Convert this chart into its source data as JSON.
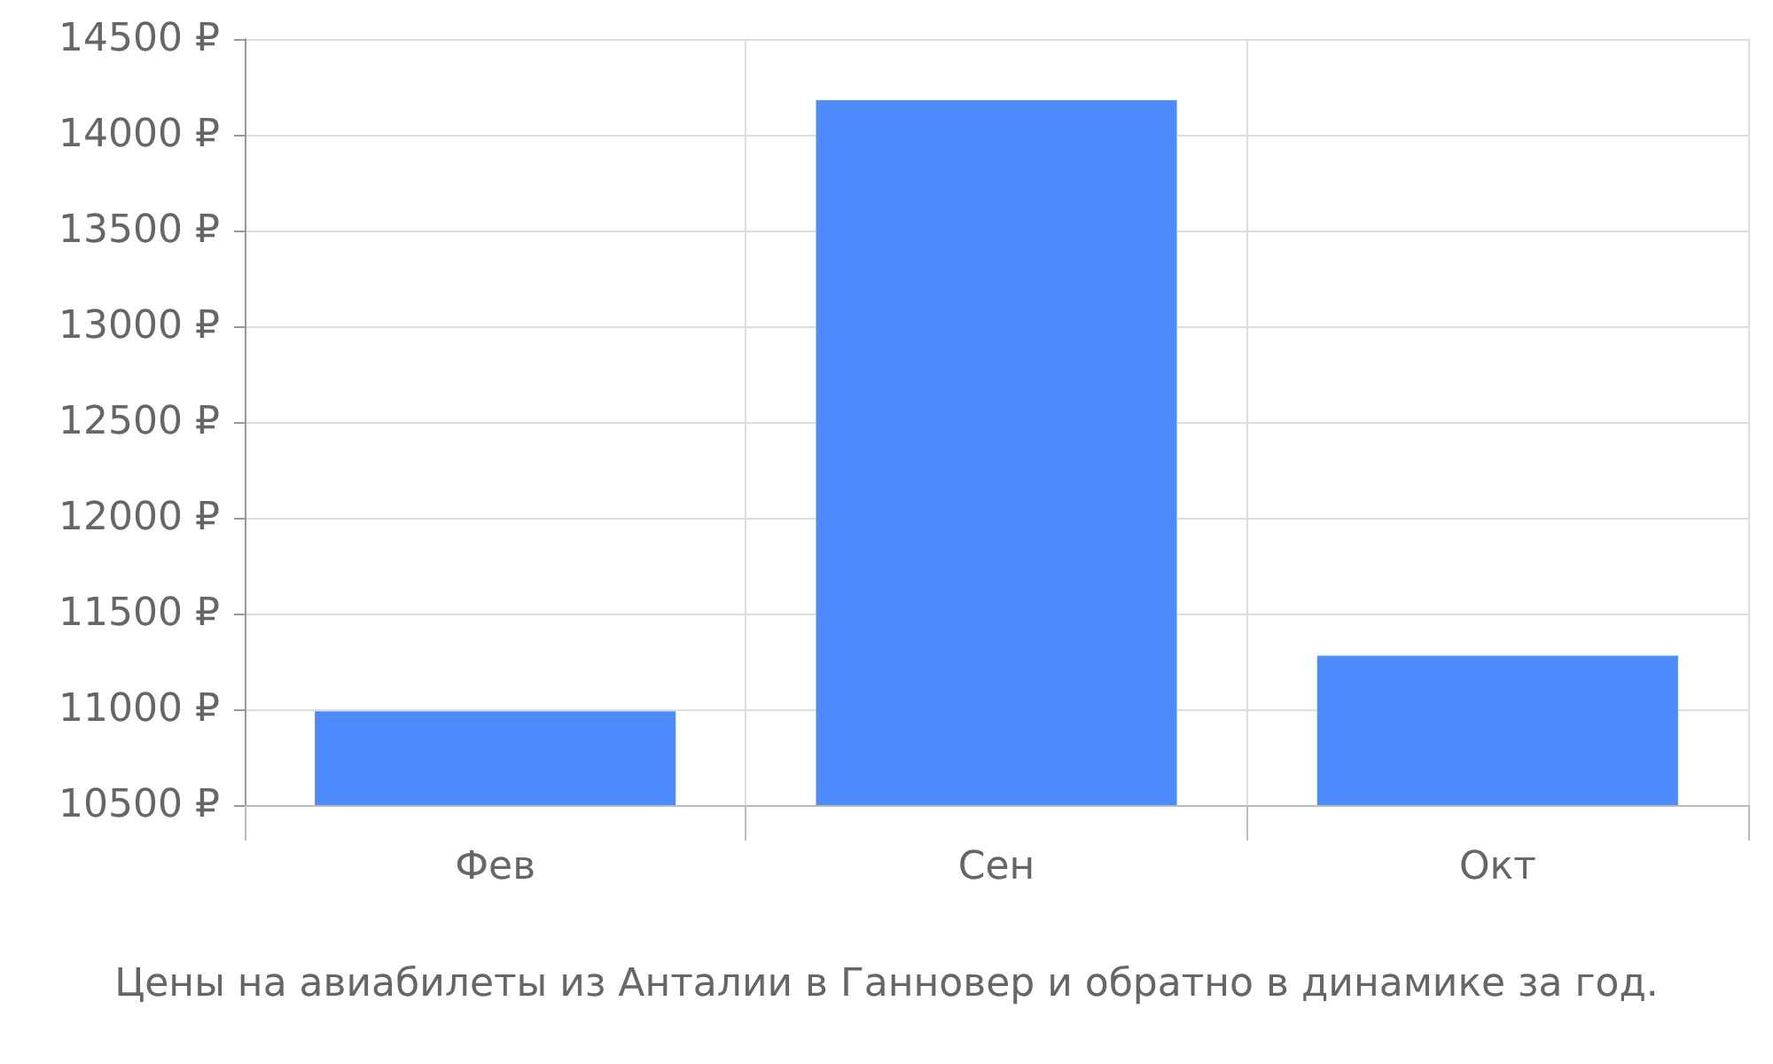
{
  "chart_data": {
    "type": "bar",
    "categories": [
      "Фев",
      "Сен",
      "Окт"
    ],
    "values": [
      10990,
      14180,
      11280
    ],
    "color": "#4d8afc",
    "ylim": [
      10500,
      14500
    ],
    "yticks": [
      {
        "value": 10500,
        "label": "10500 ₽"
      },
      {
        "value": 11000,
        "label": "11000 ₽"
      },
      {
        "value": 11500,
        "label": "11500 ₽"
      },
      {
        "value": 12000,
        "label": "12000 ₽"
      },
      {
        "value": 12500,
        "label": "12500 ₽"
      },
      {
        "value": 13000,
        "label": "13000 ₽"
      },
      {
        "value": 13500,
        "label": "13500 ₽"
      },
      {
        "value": 14000,
        "label": "14000 ₽"
      },
      {
        "value": 14500,
        "label": "14500 ₽"
      }
    ],
    "grid": true,
    "annotations": [
      "Цены на авиабилеты из Анталии в Ганновер и обратно в динамике за год."
    ]
  }
}
